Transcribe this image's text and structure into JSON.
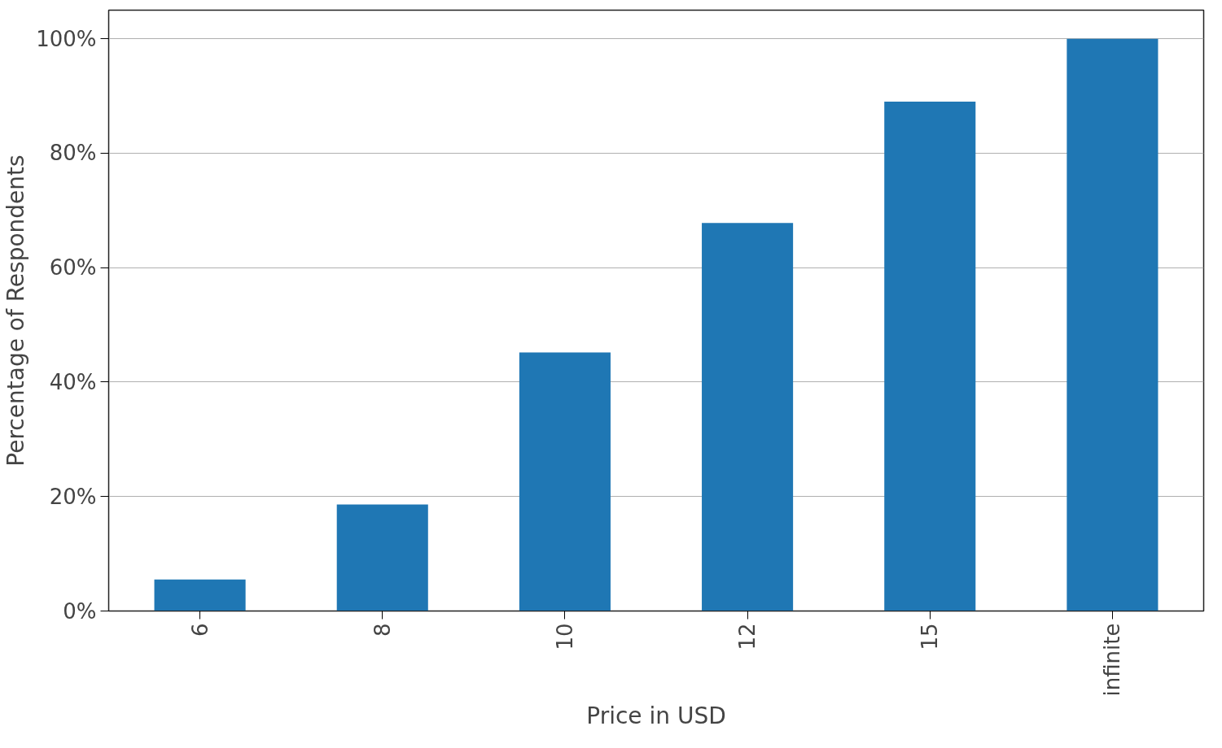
{
  "chart_data": {
    "type": "bar",
    "xlabel": "Price in USD",
    "ylabel": "Percentage of Respondents",
    "categories": [
      "6",
      "8",
      "10",
      "12",
      "15",
      "infinite"
    ],
    "values": [
      5.5,
      18.6,
      45.2,
      67.8,
      89.0,
      100
    ],
    "color": "#1f77b4",
    "ylim": [
      0,
      105
    ],
    "yticks": [
      {
        "value": 0,
        "label": "0%"
      },
      {
        "value": 20,
        "label": "20%"
      },
      {
        "value": 40,
        "label": "40%"
      },
      {
        "value": 60,
        "label": "60%"
      },
      {
        "value": 80,
        "label": "80%"
      },
      {
        "value": 100,
        "label": "100%"
      }
    ],
    "grid": "y"
  }
}
